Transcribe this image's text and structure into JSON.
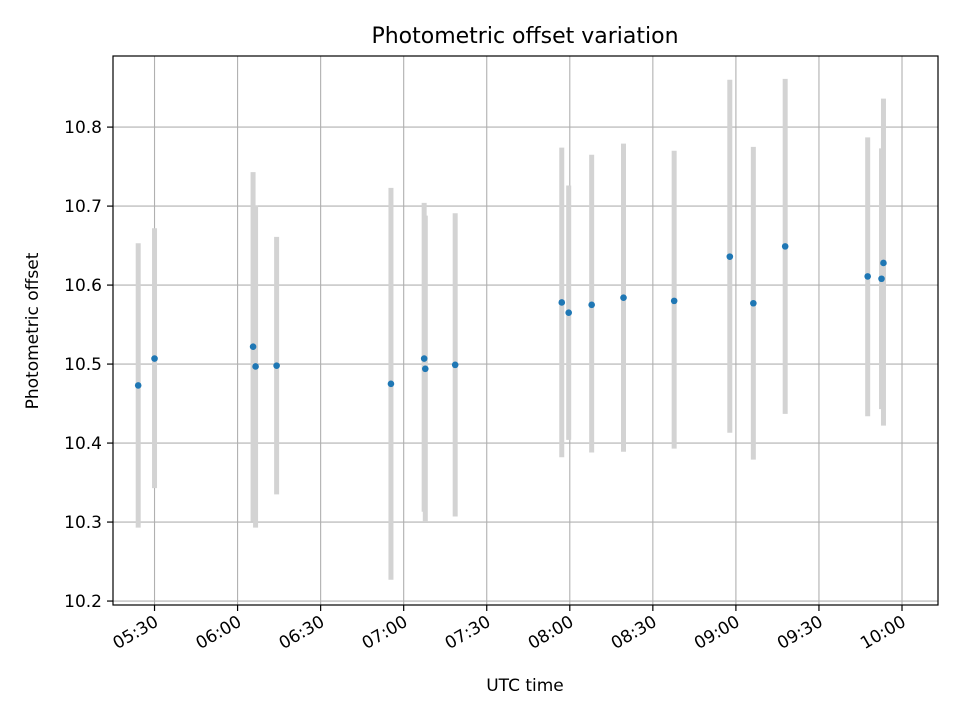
{
  "chart_data": {
    "type": "scatter",
    "title": "Photometric offset variation",
    "xlabel": "UTC time",
    "ylabel": "Photometric offset",
    "x_unit": "minutes after 00:00 UTC",
    "xlim": [
      315,
      613
    ],
    "ylim": [
      10.195,
      10.89
    ],
    "x_ticks": [
      {
        "value": 330,
        "label": "05:30"
      },
      {
        "value": 360,
        "label": "06:00"
      },
      {
        "value": 390,
        "label": "06:30"
      },
      {
        "value": 420,
        "label": "07:00"
      },
      {
        "value": 450,
        "label": "07:30"
      },
      {
        "value": 480,
        "label": "08:00"
      },
      {
        "value": 510,
        "label": "08:30"
      },
      {
        "value": 540,
        "label": "09:00"
      },
      {
        "value": 570,
        "label": "09:30"
      },
      {
        "value": 600,
        "label": "10:00"
      }
    ],
    "y_ticks": [
      {
        "value": 10.2,
        "label": "10.2"
      },
      {
        "value": 10.3,
        "label": "10.3"
      },
      {
        "value": 10.4,
        "label": "10.4"
      },
      {
        "value": 10.5,
        "label": "10.5"
      },
      {
        "value": 10.6,
        "label": "10.6"
      },
      {
        "value": 10.7,
        "label": "10.7"
      },
      {
        "value": 10.8,
        "label": "10.8"
      }
    ],
    "grid": true,
    "colors": {
      "point": "#1f77b4",
      "errorbar": "#d3d3d3",
      "grid": "#b0b0b0"
    },
    "points": [
      {
        "x": 324.1,
        "y": 10.473,
        "low": 10.293,
        "high": 10.653
      },
      {
        "x": 330.0,
        "y": 10.507,
        "low": 10.343,
        "high": 10.672
      },
      {
        "x": 365.6,
        "y": 10.522,
        "low": 10.301,
        "high": 10.743
      },
      {
        "x": 366.5,
        "y": 10.497,
        "low": 10.293,
        "high": 10.701
      },
      {
        "x": 374.1,
        "y": 10.498,
        "low": 10.335,
        "high": 10.661
      },
      {
        "x": 415.4,
        "y": 10.475,
        "low": 10.227,
        "high": 10.723
      },
      {
        "x": 427.4,
        "y": 10.507,
        "low": 10.313,
        "high": 10.704
      },
      {
        "x": 427.8,
        "y": 10.494,
        "low": 10.3,
        "high": 10.688
      },
      {
        "x": 438.6,
        "y": 10.499,
        "low": 10.307,
        "high": 10.691
      },
      {
        "x": 477.1,
        "y": 10.578,
        "low": 10.382,
        "high": 10.774
      },
      {
        "x": 479.6,
        "y": 10.565,
        "low": 10.404,
        "high": 10.726
      },
      {
        "x": 487.9,
        "y": 10.575,
        "low": 10.388,
        "high": 10.765
      },
      {
        "x": 499.4,
        "y": 10.584,
        "low": 10.389,
        "high": 10.779
      },
      {
        "x": 517.7,
        "y": 10.58,
        "low": 10.393,
        "high": 10.77
      },
      {
        "x": 537.8,
        "y": 10.636,
        "low": 10.413,
        "high": 10.86
      },
      {
        "x": 546.3,
        "y": 10.577,
        "low": 10.379,
        "high": 10.775
      },
      {
        "x": 557.8,
        "y": 10.649,
        "low": 10.437,
        "high": 10.861
      },
      {
        "x": 587.6,
        "y": 10.611,
        "low": 10.434,
        "high": 10.787
      },
      {
        "x": 592.6,
        "y": 10.608,
        "low": 10.443,
        "high": 10.773
      },
      {
        "x": 593.3,
        "y": 10.628,
        "low": 10.422,
        "high": 10.836
      }
    ]
  }
}
